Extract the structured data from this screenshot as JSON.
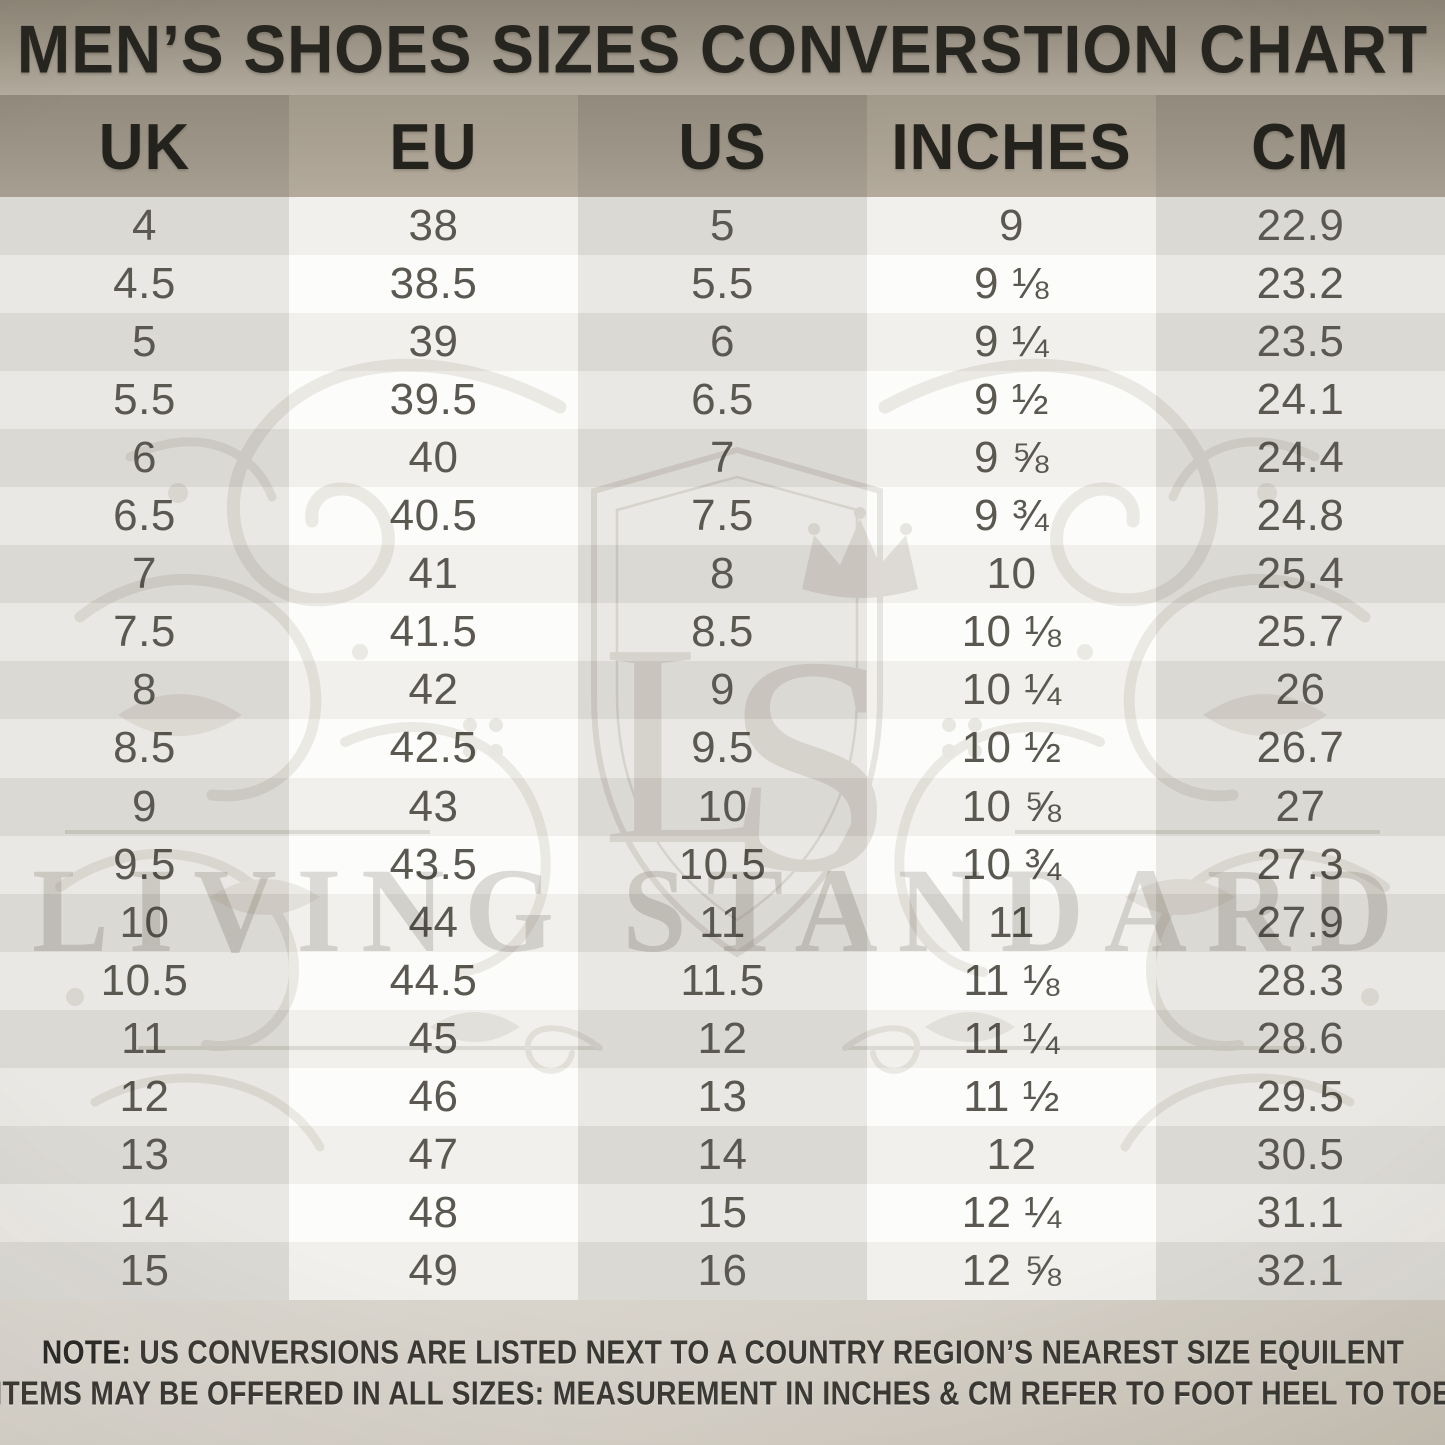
{
  "title": "MEN’S SHOES SIZES CONVERSTION CHART",
  "watermark": {
    "monogram_l": "L",
    "monogram_s": "S",
    "name": "LIVING STANDARD"
  },
  "note": {
    "prefix": "NOTE:",
    "line1": "US CONVERSIONS ARE LISTED NEXT TO A COUNTRY REGION’S NEAREST SIZE EQUILENT",
    "line2": "ITEMS MAY BE OFFERED IN ALL SIZES: MEASUREMENT IN INCHES & CM REFER TO FOOT HEEL TO TOE"
  },
  "colors": {
    "band_dark": "#8d8577",
    "band_light": "#b5ad9f",
    "header_col_dark": "#9d9587",
    "header_col_light": "#aba294",
    "row_dark_gray": "#dbd9d4",
    "row_light_gray": "#eae8e4",
    "row_tint_white": "#f1f0ed",
    "row_white": "#fcfcfb",
    "text_dark": "#26251f",
    "text_number": "#5a5850",
    "note_bg": "#d5d0c7"
  },
  "chart_data": {
    "type": "table",
    "title": "MEN’S SHOES SIZES CONVERSTION CHART",
    "columns": [
      "UK",
      "EU",
      "US",
      "INCHES",
      "CM"
    ],
    "rows": [
      [
        "4",
        "38",
        "5",
        "9",
        "22.9"
      ],
      [
        "4.5",
        "38.5",
        "5.5",
        "9 ⅛",
        "23.2"
      ],
      [
        "5",
        "39",
        "6",
        "9 ¼",
        "23.5"
      ],
      [
        "5.5",
        "39.5",
        "6.5",
        "9 ½",
        "24.1"
      ],
      [
        "6",
        "40",
        "7",
        "9 ⅝",
        "24.4"
      ],
      [
        "6.5",
        "40.5",
        "7.5",
        "9 ¾",
        "24.8"
      ],
      [
        "7",
        "41",
        "8",
        "10",
        "25.4"
      ],
      [
        "7.5",
        "41.5",
        "8.5",
        "10 ⅛",
        "25.7"
      ],
      [
        "8",
        "42",
        "9",
        "10 ¼",
        "26"
      ],
      [
        "8.5",
        "42.5",
        "9.5",
        "10 ½",
        "26.7"
      ],
      [
        "9",
        "43",
        "10",
        "10 ⅝",
        "27"
      ],
      [
        "9.5",
        "43.5",
        "10.5",
        "10 ¾",
        "27.3"
      ],
      [
        "10",
        "44",
        "11",
        "11",
        "27.9"
      ],
      [
        "10.5",
        "44.5",
        "11.5",
        "11 ⅛",
        "28.3"
      ],
      [
        "11",
        "45",
        "12",
        "11 ¼",
        "28.6"
      ],
      [
        "12",
        "46",
        "13",
        "11 ½",
        "29.5"
      ],
      [
        "13",
        "47",
        "14",
        "12",
        "30.5"
      ],
      [
        "14",
        "48",
        "15",
        "12 ¼",
        "31.1"
      ],
      [
        "15",
        "49",
        "16",
        "12 ⅝",
        "32.1"
      ]
    ],
    "note": "NOTE: US CONVERSIONS ARE LISTED NEXT TO A COUNTRY REGION’S NEAREST SIZE EQUILENT ITEMS MAY BE OFFERED IN ALL SIZES: MEASUREMENT IN INCHES & CM REFER TO FOOT HEEL TO TOE",
    "layout_hints": {
      "grid": "off",
      "striped_rows": true,
      "striped_columns": true
    }
  }
}
